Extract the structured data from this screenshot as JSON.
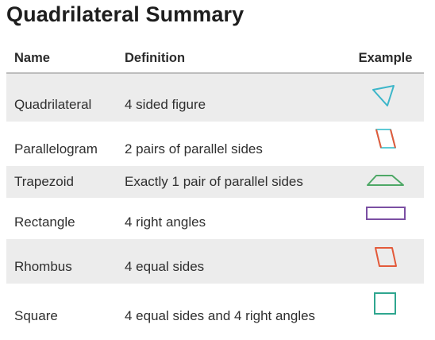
{
  "title": "Quadrilateral Summary",
  "headers": {
    "name": "Name",
    "definition": "Definition",
    "example": "Example"
  },
  "rows": [
    {
      "name": "Quadrilateral",
      "definition": "4 sided figure",
      "shape": "kite-icon",
      "color": "#3db6c9"
    },
    {
      "name": "Parallelogram",
      "definition": "2 pairs of parallel sides",
      "shape": "parallelogram-icon",
      "color": "#5ecbd6"
    },
    {
      "name": "Trapezoid",
      "definition": "Exactly 1 pair of parallel sides",
      "shape": "trapezoid-icon",
      "color": "#4ea866"
    },
    {
      "name": "Rectangle",
      "definition": "4 right angles",
      "shape": "rectangle-icon",
      "color": "#7b4fa3"
    },
    {
      "name": "Rhombus",
      "definition": "4 equal sides",
      "shape": "rhombus-icon",
      "color": "#e35a3a"
    },
    {
      "name": "Square",
      "definition": "4 equal sides and 4 right angles",
      "shape": "square-icon",
      "color": "#2fa68f"
    }
  ]
}
